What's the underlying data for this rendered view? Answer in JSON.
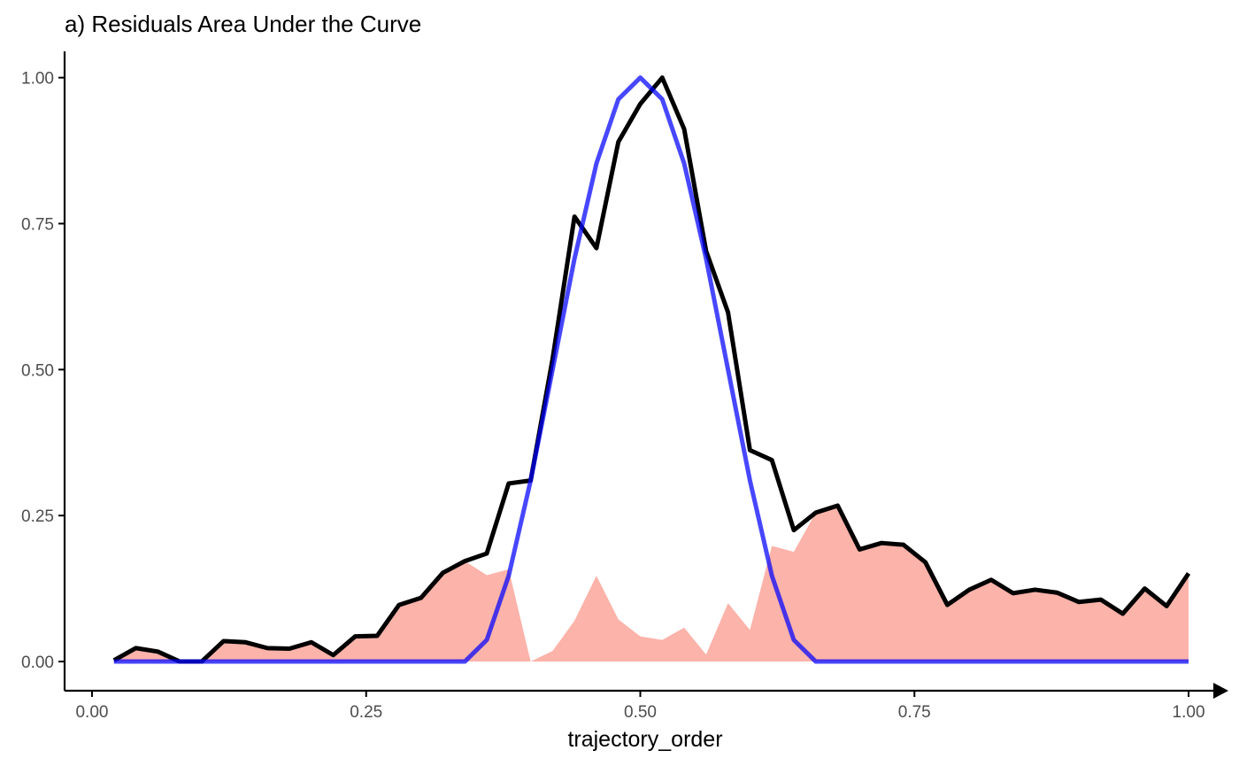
{
  "chart_data": {
    "type": "line",
    "title": "a) Residuals Area Under the Curve",
    "xlabel": "trajectory_order",
    "ylabel": "",
    "xlim": [
      -0.025,
      1.025
    ],
    "ylim": [
      -0.05,
      1.045
    ],
    "x_ticks": [
      0.0,
      0.25,
      0.5,
      0.75,
      1.0
    ],
    "x_tick_labels": [
      "0.00",
      "0.25",
      "0.50",
      "0.75",
      "1.00"
    ],
    "y_ticks": [
      0.0,
      0.25,
      0.5,
      0.75,
      1.0
    ],
    "y_tick_labels": [
      "0.00",
      "0.25",
      "0.50",
      "0.75",
      "1.00"
    ],
    "grid": false,
    "x": [
      0.02,
      0.04,
      0.06,
      0.08,
      0.1,
      0.12,
      0.14,
      0.16,
      0.18,
      0.2,
      0.22,
      0.24,
      0.26,
      0.28,
      0.3,
      0.32,
      0.34,
      0.36,
      0.38,
      0.4,
      0.42,
      0.44,
      0.46,
      0.48,
      0.5,
      0.52,
      0.54,
      0.56,
      0.58,
      0.6,
      0.62,
      0.64,
      0.66,
      0.68,
      0.7,
      0.72,
      0.74,
      0.76,
      0.78,
      0.8,
      0.82,
      0.84,
      0.86,
      0.88,
      0.9,
      0.92,
      0.94,
      0.96,
      0.98,
      1.0
    ],
    "series": [
      {
        "role": "residual-area",
        "color": "#fa8072",
        "opacity": 0.6,
        "values": [
          0.002,
          0.023,
          0.017,
          0.0,
          0.0,
          0.035,
          0.033,
          0.023,
          0.022,
          0.033,
          0.011,
          0.043,
          0.044,
          0.097,
          0.109,
          0.152,
          0.172,
          0.148,
          0.158,
          0.0,
          0.018,
          0.07,
          0.147,
          0.072,
          0.043,
          0.037,
          0.058,
          0.012,
          0.1,
          0.054,
          0.198,
          0.188,
          0.255,
          0.267,
          0.192,
          0.203,
          0.2,
          0.17,
          0.097,
          0.123,
          0.14,
          0.117,
          0.123,
          0.118,
          0.102,
          0.106,
          0.082,
          0.125,
          0.095,
          0.151
        ]
      },
      {
        "role": "observed",
        "color": "#000000",
        "values": [
          0.002,
          0.023,
          0.017,
          0.0,
          0.0,
          0.035,
          0.033,
          0.023,
          0.022,
          0.033,
          0.011,
          0.043,
          0.044,
          0.097,
          0.109,
          0.152,
          0.172,
          0.185,
          0.305,
          0.31,
          0.518,
          0.762,
          0.708,
          0.89,
          0.955,
          1.0,
          0.912,
          0.703,
          0.598,
          0.362,
          0.345,
          0.225,
          0.255,
          0.267,
          0.192,
          0.203,
          0.2,
          0.17,
          0.097,
          0.123,
          0.14,
          0.117,
          0.123,
          0.118,
          0.102,
          0.106,
          0.082,
          0.125,
          0.095,
          0.151
        ]
      },
      {
        "role": "reference",
        "color": "#0000ff",
        "values": [
          0.0,
          0.0,
          0.0,
          0.0,
          0.0,
          0.0,
          0.0,
          0.0,
          0.0,
          0.0,
          0.0,
          0.0,
          0.0,
          0.0,
          0.0,
          0.0,
          0.0,
          0.037,
          0.147,
          0.31,
          0.5,
          0.69,
          0.853,
          0.963,
          1.0,
          0.963,
          0.853,
          0.69,
          0.5,
          0.31,
          0.147,
          0.037,
          0.0,
          0.0,
          0.0,
          0.0,
          0.0,
          0.0,
          0.0,
          0.0,
          0.0,
          0.0,
          0.0,
          0.0,
          0.0,
          0.0,
          0.0,
          0.0,
          0.0,
          0.0
        ]
      }
    ]
  }
}
